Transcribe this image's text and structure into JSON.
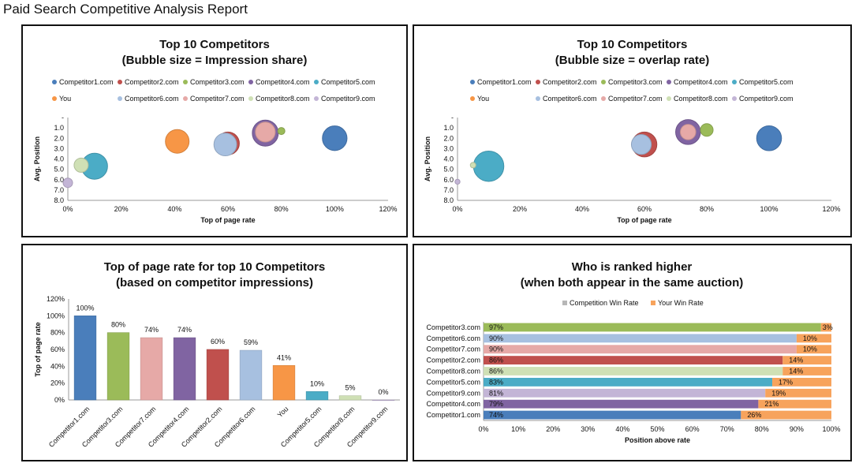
{
  "page": {
    "title": "Paid Search Competitive Analysis Report"
  },
  "colors": {
    "Competitor1.com": "#4a7ebb",
    "Competitor2.com": "#c0504d",
    "Competitor3.com": "#9bbb59",
    "Competitor4.com": "#8064a2",
    "Competitor5.com": "#4bacc6",
    "You": "#f79646",
    "Competitor6.com": "#a7c0e0",
    "Competitor7.com": "#e6a9a7",
    "Competitor8.com": "#cfe0b5",
    "Competitor9.com": "#c3b5d6"
  },
  "chart_data": [
    {
      "type": "scatter",
      "title": "Top 10 Competitors",
      "subtitle": "(Bubble size = Impression share)",
      "xlabel": "Top of page rate",
      "ylabel": "Avg. Position",
      "xlim": [
        0,
        1.2
      ],
      "ylim": [
        8.0,
        0
      ],
      "x_ticks": [
        "0%",
        "20%",
        "40%",
        "60%",
        "80%",
        "100%",
        "120%"
      ],
      "y_ticks": [
        "-",
        "1.0",
        "2.0",
        "3.0",
        "4.0",
        "5.0",
        "6.0",
        "7.0",
        "8.0"
      ],
      "legend_rows": [
        [
          "Competitor1.com",
          "Competitor2.com",
          "Competitor3.com",
          "Competitor4.com",
          "Competitor5.com"
        ],
        [
          "You",
          "Competitor6.com",
          "Competitor7.com",
          "Competitor8.com",
          "Competitor9.com"
        ]
      ],
      "points": [
        {
          "name": "Competitor1.com",
          "x": 1.0,
          "y": 2.0,
          "size": 0.52
        },
        {
          "name": "Competitor2.com",
          "x": 0.6,
          "y": 2.5,
          "size": 0.48
        },
        {
          "name": "Competitor3.com",
          "x": 0.8,
          "y": 1.3,
          "size": 0.15
        },
        {
          "name": "Competitor4.com",
          "x": 0.74,
          "y": 1.5,
          "size": 0.55
        },
        {
          "name": "Competitor5.com",
          "x": 0.1,
          "y": 4.7,
          "size": 0.55
        },
        {
          "name": "You",
          "x": 0.41,
          "y": 2.3,
          "size": 0.5
        },
        {
          "name": "Competitor6.com",
          "x": 0.59,
          "y": 2.6,
          "size": 0.48
        },
        {
          "name": "Competitor7.com",
          "x": 0.74,
          "y": 1.4,
          "size": 0.42
        },
        {
          "name": "Competitor8.com",
          "x": 0.05,
          "y": 4.6,
          "size": 0.3
        },
        {
          "name": "Competitor9.com",
          "x": 0.0,
          "y": 6.3,
          "size": 0.2
        }
      ]
    },
    {
      "type": "scatter",
      "title": "Top 10 Competitors",
      "subtitle": "(Bubble size = overlap rate)",
      "xlabel": "Top of page rate",
      "ylabel": "Avg. Position",
      "xlim": [
        0,
        1.2
      ],
      "ylim": [
        8.0,
        0
      ],
      "x_ticks": [
        "0%",
        "20%",
        "40%",
        "60%",
        "80%",
        "100%",
        "120%"
      ],
      "y_ticks": [
        "-",
        "1.0",
        "2.0",
        "3.0",
        "4.0",
        "5.0",
        "6.0",
        "7.0",
        "8.0"
      ],
      "legend_rows": [
        [
          "Competitor1.com",
          "Competitor2.com",
          "Competitor3.com",
          "Competitor4.com",
          "Competitor5.com"
        ],
        [
          "You",
          "Competitor6.com",
          "Competitor7.com",
          "Competitor8.com",
          "Competitor9.com"
        ]
      ],
      "points": [
        {
          "name": "Competitor1.com",
          "x": 1.0,
          "y": 2.0,
          "size": 0.45
        },
        {
          "name": "Competitor2.com",
          "x": 0.6,
          "y": 2.6,
          "size": 0.45
        },
        {
          "name": "Competitor3.com",
          "x": 0.8,
          "y": 1.2,
          "size": 0.23
        },
        {
          "name": "Competitor4.com",
          "x": 0.74,
          "y": 1.4,
          "size": 0.45
        },
        {
          "name": "Competitor5.com",
          "x": 0.1,
          "y": 4.7,
          "size": 0.55
        },
        {
          "name": "Competitor6.com",
          "x": 0.59,
          "y": 2.6,
          "size": 0.36
        },
        {
          "name": "Competitor7.com",
          "x": 0.74,
          "y": 1.4,
          "size": 0.28
        },
        {
          "name": "Competitor8.com",
          "x": 0.05,
          "y": 4.6,
          "size": 0.1
        },
        {
          "name": "Competitor9.com",
          "x": 0.0,
          "y": 6.2,
          "size": 0.09
        }
      ]
    },
    {
      "type": "bar",
      "title": "Top of page rate for top 10 Competitors",
      "subtitle": "(based on competitor impressions)",
      "ylabel": "Top of page rate",
      "ylim": [
        0,
        1.2
      ],
      "y_ticks": [
        "0%",
        "20%",
        "40%",
        "60%",
        "80%",
        "100%",
        "120%"
      ],
      "categories": [
        "Competitor1.com",
        "Competitor3.com",
        "Competitor7.com",
        "Competitor4.com",
        "Competitor2.com",
        "Competitor6.com",
        "You",
        "Competitor5.com",
        "Competitor8.com",
        "Competitor9.com"
      ],
      "values": [
        1.0,
        0.8,
        0.74,
        0.74,
        0.6,
        0.59,
        0.41,
        0.1,
        0.05,
        0.0
      ],
      "labels": [
        "100%",
        "80%",
        "74%",
        "74%",
        "60%",
        "59%",
        "41%",
        "10%",
        "5%",
        "0%"
      ]
    },
    {
      "type": "bar",
      "orientation": "horizontal-stacked",
      "title": "Who is ranked higher",
      "subtitle": "(when both appear in the same auction)",
      "xlabel": "Position above rate",
      "xlim": [
        0,
        1.0
      ],
      "x_ticks": [
        "0%",
        "10%",
        "20%",
        "30%",
        "40%",
        "50%",
        "60%",
        "70%",
        "80%",
        "90%",
        "100%"
      ],
      "legend": [
        "Competition Win Rate",
        "Your Win Rate"
      ],
      "legend_colors": [
        "#b7b7b7",
        "#f7a35c"
      ],
      "categories": [
        "Competitor3.com",
        "Competitor6.com",
        "Competitor7.com",
        "Competitor2.com",
        "Competitor8.com",
        "Competitor5.com",
        "Competitor9.com",
        "Competitor4.com",
        "Competitor1.com"
      ],
      "series": [
        {
          "name": "Competition Win Rate",
          "values": [
            0.97,
            0.9,
            0.9,
            0.86,
            0.86,
            0.83,
            0.81,
            0.79,
            0.74
          ],
          "labels": [
            "97%",
            "90%",
            "90%",
            "86%",
            "86%",
            "83%",
            "81%",
            "79%",
            "74%"
          ]
        },
        {
          "name": "Your Win Rate",
          "values": [
            0.03,
            0.1,
            0.1,
            0.14,
            0.14,
            0.17,
            0.19,
            0.21,
            0.26
          ],
          "labels": [
            "3%",
            "10%",
            "10%",
            "14%",
            "14%",
            "17%",
            "19%",
            "21%",
            "26%"
          ]
        }
      ]
    }
  ]
}
